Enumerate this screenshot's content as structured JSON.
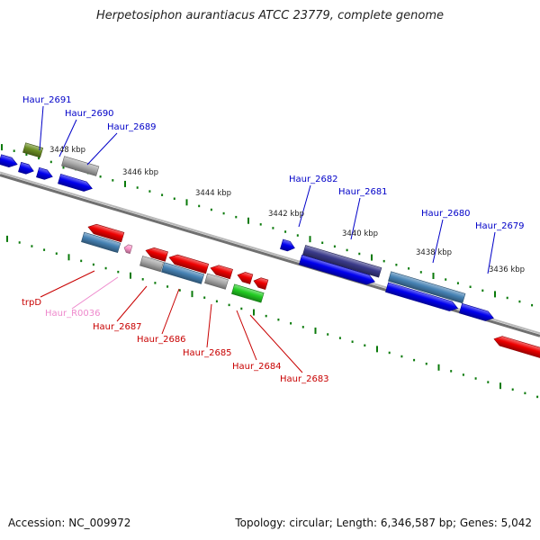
{
  "title": "Herpetosiphon aurantiacus ATCC 23779, complete genome",
  "footer": {
    "accession": "Accession: NC_009972",
    "summary": "Topology: circular; Length: 6,346,587 bp; Genes: 5,042"
  },
  "colors": {
    "forward_label": "#0000c8",
    "reverse_label": "#c80000",
    "rna_label": "#ee88cc",
    "tick": "#0a7a0a",
    "backbone": "#888888",
    "blue": "#0000ee",
    "red": "#ee0000",
    "steel": "#4682b4",
    "purple": "#3a3a8a",
    "grey": "#aaaaaa",
    "green": "#22cc22",
    "olive": "#6b8e23",
    "pink": "#ff99cc"
  },
  "scale_labels": [
    "3448 kbp",
    "3446 kbp",
    "3444 kbp",
    "3442 kbp",
    "3440 kbp",
    "3438 kbp",
    "3436 kbp"
  ],
  "gene_labels": {
    "forward": [
      "Haur_2691",
      "Haur_2690",
      "Haur_2689",
      "Haur_2682",
      "Haur_2681",
      "Haur_2680",
      "Haur_2679"
    ],
    "reverse": [
      "trpD",
      "Haur_R0036",
      "Haur_2687",
      "Haur_2686",
      "Haur_2685",
      "Haur_2684",
      "Haur_2683"
    ]
  }
}
